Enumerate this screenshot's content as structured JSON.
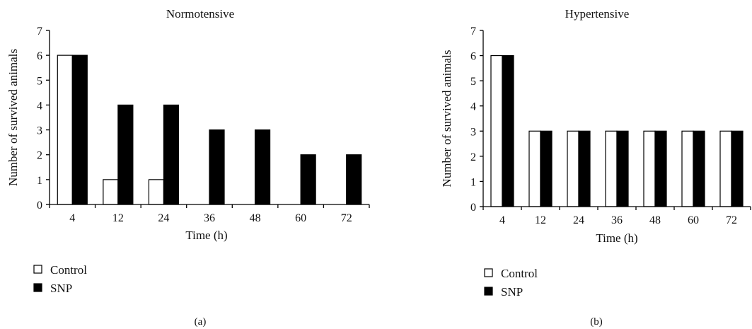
{
  "figure": {
    "colors": {
      "control": "#ffffff",
      "snp": "#000000",
      "axis": "#000000",
      "bar_edge": "#000000"
    }
  },
  "chart_data": [
    {
      "type": "bar",
      "title": "Normotensive",
      "panel_label": "(a)",
      "xlabel": "Time (h)",
      "ylabel": "Number of survived animals",
      "categories": [
        "4",
        "12",
        "24",
        "36",
        "48",
        "60",
        "72"
      ],
      "ylim": [
        0,
        7
      ],
      "yticks": [
        "0",
        "1",
        "2",
        "3",
        "4",
        "5",
        "6",
        "7"
      ],
      "grid": false,
      "legend_position": "bottom-left",
      "series": [
        {
          "name": "Control",
          "color": "#ffffff",
          "values": [
            6,
            1,
            1,
            0,
            0,
            0,
            0
          ]
        },
        {
          "name": "SNP",
          "color": "#000000",
          "values": [
            6,
            4,
            4,
            3,
            3,
            2,
            2
          ]
        }
      ]
    },
    {
      "type": "bar",
      "title": "Hypertensive",
      "panel_label": "(b)",
      "xlabel": "Time (h)",
      "ylabel": "Number of survived animals",
      "categories": [
        "4",
        "12",
        "24",
        "36",
        "48",
        "60",
        "72"
      ],
      "ylim": [
        0,
        7
      ],
      "yticks": [
        "0",
        "1",
        "2",
        "3",
        "4",
        "5",
        "6",
        "7"
      ],
      "grid": false,
      "legend_position": "bottom-left",
      "series": [
        {
          "name": "Control",
          "color": "#ffffff",
          "values": [
            6,
            3,
            3,
            3,
            3,
            3,
            3
          ]
        },
        {
          "name": "SNP",
          "color": "#000000",
          "values": [
            6,
            3,
            3,
            3,
            3,
            3,
            3
          ]
        }
      ]
    }
  ]
}
